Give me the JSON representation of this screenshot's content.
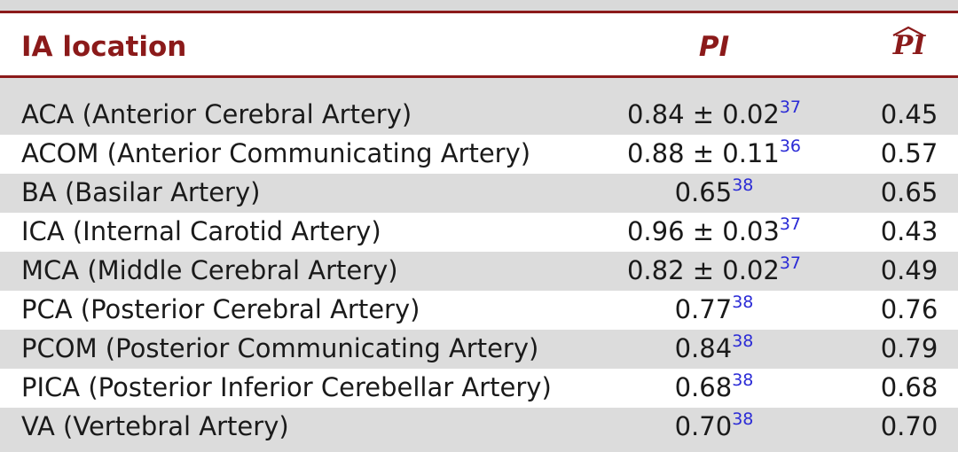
{
  "header": {
    "location": "IA location",
    "pi": "PI",
    "pi_hat": "PI"
  },
  "rows": [
    {
      "location": "ACA (Anterior Cerebral Artery)",
      "pi": "0.84 ± 0.02",
      "pi_ref": "37",
      "pi_hat": "0.45"
    },
    {
      "location": "ACOM (Anterior Communicating Artery)",
      "pi": "0.88 ± 0.11",
      "pi_ref": "36",
      "pi_hat": "0.57"
    },
    {
      "location": "BA (Basilar Artery)",
      "pi": "0.65",
      "pi_ref": "38",
      "pi_hat": "0.65"
    },
    {
      "location": "ICA (Internal Carotid Artery)",
      "pi": "0.96 ± 0.03",
      "pi_ref": "37",
      "pi_hat": "0.43"
    },
    {
      "location": "MCA (Middle Cerebral Artery)",
      "pi": "0.82 ± 0.02",
      "pi_ref": "37",
      "pi_hat": "0.49"
    },
    {
      "location": "PCA (Posterior Cerebral Artery)",
      "pi": "0.77",
      "pi_ref": "38",
      "pi_hat": "0.76"
    },
    {
      "location": "PCOM (Posterior Communicating Artery)",
      "pi": "0.84",
      "pi_ref": "38",
      "pi_hat": "0.79"
    },
    {
      "location": "PICA (Posterior Inferior Cerebellar Artery)",
      "pi": "0.68",
      "pi_ref": "38",
      "pi_hat": "0.68"
    },
    {
      "location": "VA (Vertebral Artery)",
      "pi": "0.70",
      "pi_ref": "38",
      "pi_hat": "0.70"
    }
  ],
  "colors": {
    "accent": "#8b1a1a",
    "shade": "#dcdcdc",
    "ref_link": "#2b2bd6",
    "text": "#1a1a1a"
  }
}
